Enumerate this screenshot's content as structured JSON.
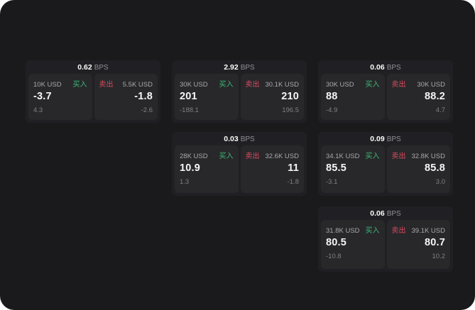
{
  "panel": {
    "bg": "#1a1a1c",
    "card_bg": "#202024",
    "tile_bg": "#28282b",
    "green": "#3eb873",
    "red": "#da4b5e",
    "bps_unit": "BPS",
    "buy_label": "买入",
    "sell_label": "卖出"
  },
  "cards": [
    {
      "col": 0,
      "row": 0,
      "bps": "0.62",
      "buy": {
        "size": "10K USD",
        "value": "-3.7",
        "sub": "4.3"
      },
      "sell": {
        "size": "5.5K USD",
        "value": "-1.8",
        "sub": "-2.6"
      }
    },
    {
      "col": 1,
      "row": 0,
      "bps": "2.92",
      "buy": {
        "size": "30K USD",
        "value": "201",
        "sub": "-188.1"
      },
      "sell": {
        "size": "30.1K USD",
        "value": "210",
        "sub": "196.5"
      }
    },
    {
      "col": 2,
      "row": 0,
      "bps": "0.06",
      "buy": {
        "size": "30K USD",
        "value": "88",
        "sub": "-4.9"
      },
      "sell": {
        "size": "30K USD",
        "value": "88.2",
        "sub": "4.7"
      }
    },
    {
      "col": 1,
      "row": 1,
      "bps": "0.03",
      "buy": {
        "size": "28K USD",
        "value": "10.9",
        "sub": "1.3"
      },
      "sell": {
        "size": "32.6K USD",
        "value": "11",
        "sub": "-1.8"
      }
    },
    {
      "col": 2,
      "row": 1,
      "bps": "0.09",
      "buy": {
        "size": "34.1K USD",
        "value": "85.5",
        "sub": "-3.1"
      },
      "sell": {
        "size": "32.8K USD",
        "value": "85.8",
        "sub": "3.0"
      }
    },
    {
      "col": 2,
      "row": 2,
      "bps": "0.06",
      "buy": {
        "size": "31.8K USD",
        "value": "80.5",
        "sub": "-10.8"
      },
      "sell": {
        "size": "39.1K USD",
        "value": "80.7",
        "sub": "10.2"
      }
    }
  ]
}
